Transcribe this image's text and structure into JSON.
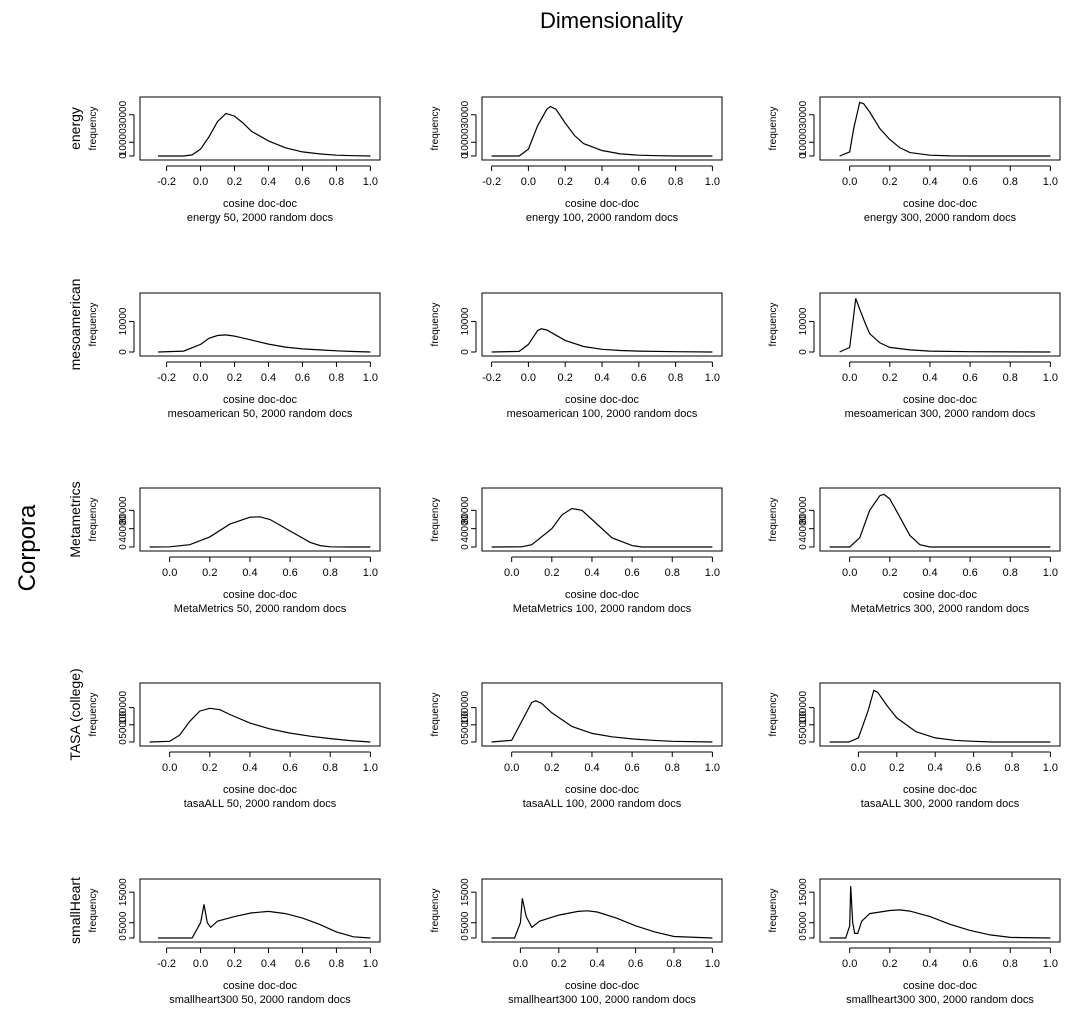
{
  "page": {
    "title": "Dimensionality",
    "row_axis_label": "Corpora"
  },
  "chart_data": [
    {
      "type": "line",
      "row": "energy",
      "row_label": "energy",
      "dims": 50,
      "xlabel": "cosine doc-doc",
      "subtitle": "energy 50, 2000 random docs",
      "ylabel": "frequency",
      "xlim": [
        -0.3,
        1.0
      ],
      "xticks": [
        -0.2,
        0.0,
        0.2,
        0.4,
        0.6,
        0.8,
        1.0
      ],
      "ylim": [
        0,
        40000
      ],
      "yticks": [
        0,
        10000,
        30000
      ],
      "x": [
        -0.25,
        -0.1,
        -0.05,
        0.0,
        0.05,
        0.1,
        0.15,
        0.2,
        0.25,
        0.3,
        0.4,
        0.5,
        0.6,
        0.7,
        0.8,
        0.9,
        1.0
      ],
      "y": [
        0,
        0,
        800,
        5000,
        14000,
        25000,
        31000,
        29000,
        24000,
        18000,
        11000,
        6000,
        3000,
        1500,
        600,
        200,
        0
      ]
    },
    {
      "type": "line",
      "row": "energy",
      "row_label": "",
      "dims": 100,
      "xlabel": "cosine doc-doc",
      "subtitle": "energy 100, 2000 random docs",
      "ylabel": "frequency",
      "xlim": [
        -0.2,
        1.0
      ],
      "xticks": [
        -0.2,
        0.0,
        0.2,
        0.4,
        0.6,
        0.8,
        1.0
      ],
      "ylim": [
        0,
        40000
      ],
      "yticks": [
        0,
        10000,
        30000
      ],
      "x": [
        -0.2,
        -0.05,
        0.0,
        0.05,
        0.1,
        0.12,
        0.15,
        0.2,
        0.25,
        0.3,
        0.4,
        0.5,
        0.6,
        0.7,
        0.8,
        1.0
      ],
      "y": [
        0,
        0,
        5000,
        22000,
        34000,
        36000,
        34000,
        24000,
        15000,
        9000,
        4000,
        1500,
        600,
        200,
        0,
        0
      ]
    },
    {
      "type": "line",
      "row": "energy",
      "row_label": "",
      "dims": 300,
      "xlabel": "cosine doc-doc",
      "subtitle": "energy 300, 2000 random docs",
      "ylabel": "frequency",
      "xlim": [
        -0.1,
        1.0
      ],
      "xticks": [
        0.0,
        0.2,
        0.4,
        0.6,
        0.8,
        1.0
      ],
      "ylim": [
        0,
        40000
      ],
      "yticks": [
        0,
        10000,
        30000
      ],
      "x": [
        -0.05,
        0.0,
        0.02,
        0.05,
        0.07,
        0.1,
        0.15,
        0.2,
        0.25,
        0.3,
        0.4,
        0.5,
        0.6,
        1.0
      ],
      "y": [
        0,
        3000,
        20000,
        39000,
        38000,
        32000,
        20000,
        12000,
        6000,
        2500,
        600,
        100,
        0,
        0
      ]
    },
    {
      "type": "line",
      "row": "mesoamerican",
      "row_label": "mesoamerican",
      "dims": 50,
      "xlabel": "cosine doc-doc",
      "subtitle": "mesoamerican 50, 2000 random docs",
      "ylabel": "frequency",
      "xlim": [
        -0.3,
        1.0
      ],
      "xticks": [
        -0.2,
        0.0,
        0.2,
        0.4,
        0.6,
        0.8,
        1.0
      ],
      "ylim": [
        0,
        18000
      ],
      "yticks": [
        0,
        10000
      ],
      "x": [
        -0.25,
        -0.1,
        0.0,
        0.05,
        0.1,
        0.15,
        0.2,
        0.3,
        0.4,
        0.5,
        0.6,
        0.7,
        0.8,
        0.9,
        1.0
      ],
      "y": [
        0,
        300,
        2500,
        4500,
        5400,
        5600,
        5200,
        3900,
        2600,
        1600,
        1000,
        700,
        400,
        150,
        0
      ]
    },
    {
      "type": "line",
      "row": "mesoamerican",
      "row_label": "",
      "dims": 100,
      "xlabel": "cosine doc-doc",
      "subtitle": "mesoamerican 100, 2000 random docs",
      "ylabel": "frequency",
      "xlim": [
        -0.2,
        1.0
      ],
      "xticks": [
        -0.2,
        0.0,
        0.2,
        0.4,
        0.6,
        0.8,
        1.0
      ],
      "ylim": [
        0,
        18000
      ],
      "yticks": [
        0,
        10000
      ],
      "x": [
        -0.2,
        -0.05,
        0.0,
        0.05,
        0.07,
        0.1,
        0.15,
        0.2,
        0.3,
        0.4,
        0.5,
        0.6,
        0.8,
        1.0
      ],
      "y": [
        0,
        200,
        2500,
        7000,
        7600,
        7200,
        5500,
        3800,
        1800,
        900,
        500,
        300,
        100,
        0
      ]
    },
    {
      "type": "line",
      "row": "mesoamerican",
      "row_label": "",
      "dims": 300,
      "xlabel": "cosine doc-doc",
      "subtitle": "mesoamerican 300, 2000 random docs",
      "ylabel": "frequency",
      "xlim": [
        -0.1,
        1.0
      ],
      "xticks": [
        0.0,
        0.2,
        0.4,
        0.6,
        0.8,
        1.0
      ],
      "ylim": [
        0,
        18000
      ],
      "yticks": [
        0,
        10000
      ],
      "x": [
        -0.05,
        0.0,
        0.02,
        0.03,
        0.05,
        0.08,
        0.1,
        0.15,
        0.2,
        0.3,
        0.4,
        0.6,
        1.0
      ],
      "y": [
        0,
        1500,
        12000,
        17500,
        14000,
        9000,
        6000,
        3000,
        1500,
        700,
        300,
        100,
        0
      ]
    },
    {
      "type": "line",
      "row": "Metametrics",
      "row_label": "Metametrics",
      "dims": 50,
      "xlabel": "cosine doc-doc",
      "subtitle": "MetaMetrics 50, 2000 random docs",
      "ylabel": "frequency",
      "xlim": [
        -0.1,
        1.0
      ],
      "xticks": [
        0.0,
        0.2,
        0.4,
        0.6,
        0.8,
        1.0
      ],
      "ylim": [
        0,
        120000
      ],
      "yticks": [
        0,
        40000,
        80000
      ],
      "x": [
        -0.1,
        0.0,
        0.1,
        0.2,
        0.3,
        0.4,
        0.45,
        0.5,
        0.6,
        0.7,
        0.75,
        0.8,
        0.9,
        1.0
      ],
      "y": [
        0,
        500,
        5000,
        22000,
        50000,
        65000,
        66000,
        60000,
        35000,
        10000,
        3000,
        500,
        0,
        0
      ]
    },
    {
      "type": "line",
      "row": "Metametrics",
      "row_label": "",
      "dims": 100,
      "xlabel": "cosine doc-doc",
      "subtitle": "MetaMetrics 100, 2000 random docs",
      "ylabel": "frequency",
      "xlim": [
        -0.1,
        1.0
      ],
      "xticks": [
        0.0,
        0.2,
        0.4,
        0.6,
        0.8,
        1.0
      ],
      "ylim": [
        0,
        120000
      ],
      "yticks": [
        0,
        40000,
        80000
      ],
      "x": [
        -0.1,
        0.05,
        0.1,
        0.2,
        0.25,
        0.3,
        0.35,
        0.4,
        0.5,
        0.6,
        0.65,
        1.0
      ],
      "y": [
        0,
        500,
        5000,
        40000,
        70000,
        84000,
        80000,
        60000,
        20000,
        3000,
        0,
        0
      ]
    },
    {
      "type": "line",
      "row": "Metametrics",
      "row_label": "",
      "dims": 300,
      "xlabel": "cosine doc-doc",
      "subtitle": "MetaMetrics 300, 2000 random docs",
      "ylabel": "frequency",
      "xlim": [
        -0.1,
        1.0
      ],
      "xticks": [
        0.0,
        0.2,
        0.4,
        0.6,
        0.8,
        1.0
      ],
      "ylim": [
        0,
        120000
      ],
      "yticks": [
        0,
        40000,
        80000
      ],
      "x": [
        -0.1,
        0.0,
        0.05,
        0.1,
        0.15,
        0.17,
        0.2,
        0.25,
        0.3,
        0.35,
        0.4,
        1.0
      ],
      "y": [
        0,
        0,
        20000,
        80000,
        112000,
        115000,
        105000,
        65000,
        25000,
        5000,
        0,
        0
      ]
    },
    {
      "type": "line",
      "row": "TASA (college)",
      "row_label": "TASA (college)",
      "dims": 50,
      "xlabel": "cosine doc-doc",
      "subtitle": "tasaALL 50, 2000 random docs",
      "ylabel": "frequency",
      "xlim": [
        -0.1,
        1.0
      ],
      "xticks": [
        0.0,
        0.2,
        0.4,
        0.6,
        0.8,
        1.0
      ],
      "ylim": [
        0,
        160000
      ],
      "yticks": [
        0,
        50000,
        100000
      ],
      "x": [
        -0.1,
        0.0,
        0.05,
        0.1,
        0.15,
        0.2,
        0.25,
        0.3,
        0.4,
        0.5,
        0.6,
        0.7,
        0.8,
        0.9,
        1.0
      ],
      "y": [
        0,
        2000,
        20000,
        60000,
        90000,
        98000,
        94000,
        80000,
        55000,
        38000,
        26000,
        17000,
        10000,
        4000,
        0
      ]
    },
    {
      "type": "line",
      "row": "TASA (college)",
      "row_label": "",
      "dims": 100,
      "xlabel": "cosine doc-doc",
      "subtitle": "tasaALL 100, 2000 random docs",
      "ylabel": "frequency",
      "xlim": [
        -0.1,
        1.0
      ],
      "xticks": [
        0.0,
        0.2,
        0.4,
        0.6,
        0.8,
        1.0
      ],
      "ylim": [
        0,
        160000
      ],
      "yticks": [
        0,
        50000,
        100000
      ],
      "x": [
        -0.1,
        0.0,
        0.05,
        0.1,
        0.12,
        0.15,
        0.2,
        0.3,
        0.4,
        0.5,
        0.6,
        0.7,
        0.8,
        1.0
      ],
      "y": [
        0,
        5000,
        60000,
        115000,
        120000,
        112000,
        85000,
        45000,
        25000,
        15000,
        9000,
        5000,
        2000,
        0
      ]
    },
    {
      "type": "line",
      "row": "TASA (college)",
      "row_label": "",
      "dims": 300,
      "xlabel": "cosine doc-doc",
      "subtitle": "tasaALL 300, 2000 random docs",
      "ylabel": "frequency",
      "xlim": [
        -0.15,
        1.0
      ],
      "xticks": [
        0.0,
        0.2,
        0.4,
        0.6,
        0.8,
        1.0
      ],
      "ylim": [
        0,
        160000
      ],
      "yticks": [
        0,
        50000,
        100000
      ],
      "x": [
        -0.15,
        -0.05,
        0.0,
        0.05,
        0.08,
        0.1,
        0.15,
        0.2,
        0.3,
        0.4,
        0.5,
        0.6,
        0.7,
        1.0
      ],
      "y": [
        0,
        0,
        12000,
        90000,
        150000,
        145000,
        105000,
        70000,
        30000,
        12000,
        5000,
        2000,
        0,
        0
      ]
    },
    {
      "type": "line",
      "row": "smallHeart",
      "row_label": "smallHeart",
      "dims": 50,
      "xlabel": "cosine doc-doc",
      "subtitle": "smallheart300 50, 2000 random docs",
      "ylabel": "frequency",
      "xlim": [
        -0.3,
        1.0
      ],
      "xticks": [
        -0.2,
        0.0,
        0.2,
        0.4,
        0.6,
        0.8,
        1.0
      ],
      "ylim": [
        0,
        18000
      ],
      "yticks": [
        0,
        5000,
        15000
      ],
      "x": [
        -0.25,
        -0.05,
        0.0,
        0.02,
        0.04,
        0.06,
        0.1,
        0.2,
        0.3,
        0.4,
        0.5,
        0.6,
        0.7,
        0.8,
        0.9,
        1.0
      ],
      "y": [
        0,
        0,
        5000,
        11000,
        5000,
        3500,
        5500,
        7000,
        8200,
        8700,
        8000,
        6500,
        4500,
        2000,
        400,
        0
      ]
    },
    {
      "type": "line",
      "row": "smallHeart",
      "row_label": "",
      "dims": 100,
      "xlabel": "cosine doc-doc",
      "subtitle": "smallheart300 100, 2000 random docs",
      "ylabel": "frequency",
      "xlim": [
        -0.15,
        1.0
      ],
      "xticks": [
        0.0,
        0.2,
        0.4,
        0.6,
        0.8,
        1.0
      ],
      "ylim": [
        0,
        18000
      ],
      "yticks": [
        0,
        5000,
        15000
      ],
      "x": [
        -0.15,
        -0.03,
        0.0,
        0.01,
        0.03,
        0.06,
        0.1,
        0.2,
        0.3,
        0.35,
        0.4,
        0.5,
        0.6,
        0.7,
        0.8,
        1.0
      ],
      "y": [
        0,
        0,
        5000,
        13000,
        7000,
        3500,
        5500,
        7500,
        8700,
        8900,
        8500,
        6500,
        4000,
        2000,
        500,
        0
      ]
    },
    {
      "type": "line",
      "row": "smallHeart",
      "row_label": "",
      "dims": 300,
      "xlabel": "cosine doc-doc",
      "subtitle": "smallheart300 300, 2000 random docs",
      "ylabel": "frequency",
      "xlim": [
        -0.1,
        1.0
      ],
      "xticks": [
        0.0,
        0.2,
        0.4,
        0.6,
        0.8,
        1.0
      ],
      "ylim": [
        0,
        18000
      ],
      "yticks": [
        0,
        5000,
        15000
      ],
      "x": [
        -0.1,
        -0.02,
        0.0,
        0.005,
        0.015,
        0.025,
        0.04,
        0.06,
        0.1,
        0.2,
        0.25,
        0.3,
        0.4,
        0.5,
        0.6,
        0.7,
        0.8,
        1.0
      ],
      "y": [
        0,
        0,
        4000,
        17000,
        5000,
        1500,
        1500,
        5500,
        8000,
        9000,
        9200,
        8800,
        7000,
        4500,
        2500,
        1000,
        200,
        0
      ]
    }
  ]
}
